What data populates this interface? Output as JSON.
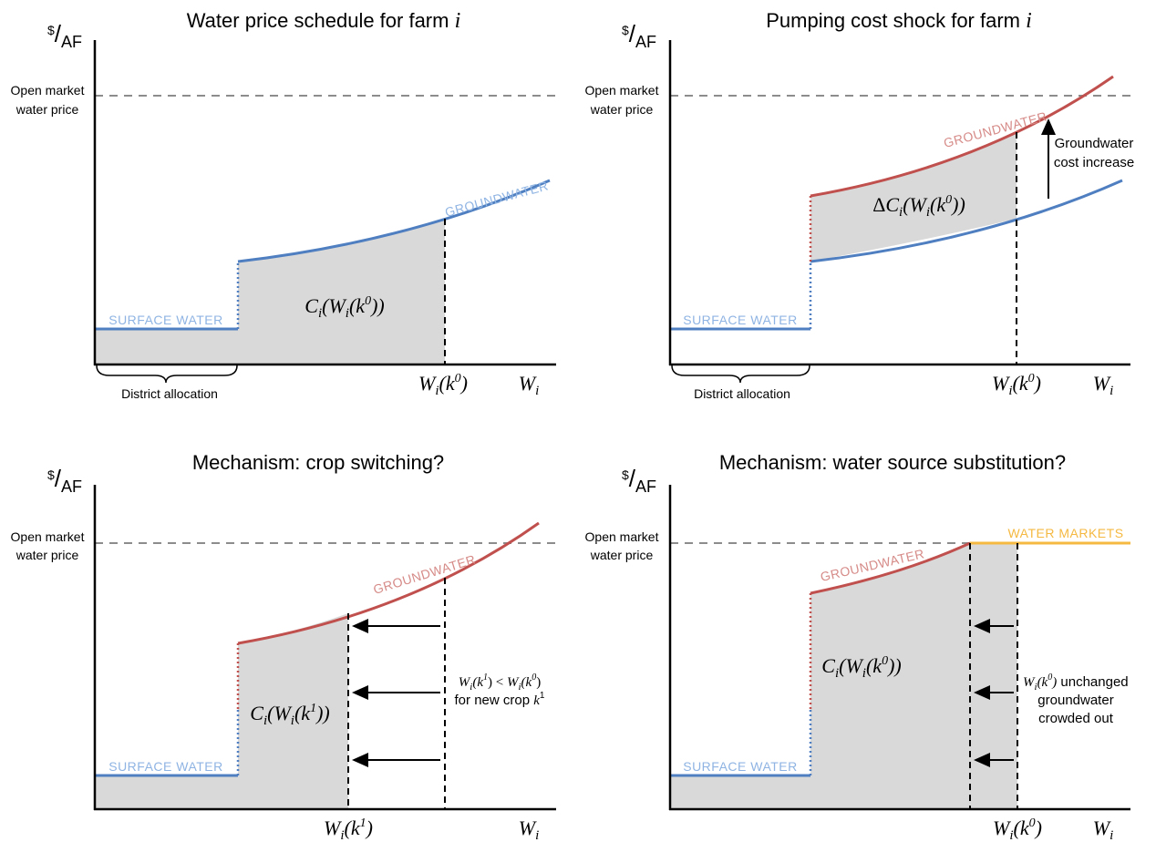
{
  "common": {
    "unit_sup": "$",
    "unit_sub": "AF",
    "price_label_1": "Open market",
    "price_label_2": "water price",
    "x_axis_label": "W",
    "x_axis_sub": "i",
    "surface_label": "SURFACE WATER",
    "groundwater_label": "GROUNDWATER",
    "district_label": "District allocation",
    "colors": {
      "surface_label": "#8fb4e3",
      "blue_curve": "#4f7fc0",
      "red_curve": "#c0504d",
      "red_label": "#d68b88",
      "markets": "#f5b941",
      "shade": "#d9d9d9",
      "dashed": "#8c8c8c"
    }
  },
  "panels": {
    "p1": {
      "title": "Water price schedule for farm ",
      "title_var": "i",
      "area_label": "C_i(W_i(k^0))",
      "x_marker": "W_i(k^0)"
    },
    "p2": {
      "title": "Pumping cost shock for farm ",
      "title_var": "i",
      "area_label": "ΔC_i(W_i(k^0))",
      "x_marker": "W_i(k^0)",
      "annotation_1": "Groundwater",
      "annotation_2": "cost increase"
    },
    "p3": {
      "title": "Mechanism: crop switching?",
      "area_label": "C_i(W_i(k^1))",
      "x_marker": "W_i(k^1)",
      "annotation_math": "W_i(k^1) < W_i(k^0)",
      "annotation_text": "for new crop ",
      "annotation_var": "k^1"
    },
    "p4": {
      "title": "Mechanism: water source substitution?",
      "area_label": "C_i(W_i(k^0))",
      "x_marker": "W_i(k^0)",
      "markets_label": "WATER MARKETS",
      "annotation_math": "W_i(k^0)",
      "annotation_1": " unchanged",
      "annotation_2": "groundwater",
      "annotation_3": "crowded out"
    }
  }
}
